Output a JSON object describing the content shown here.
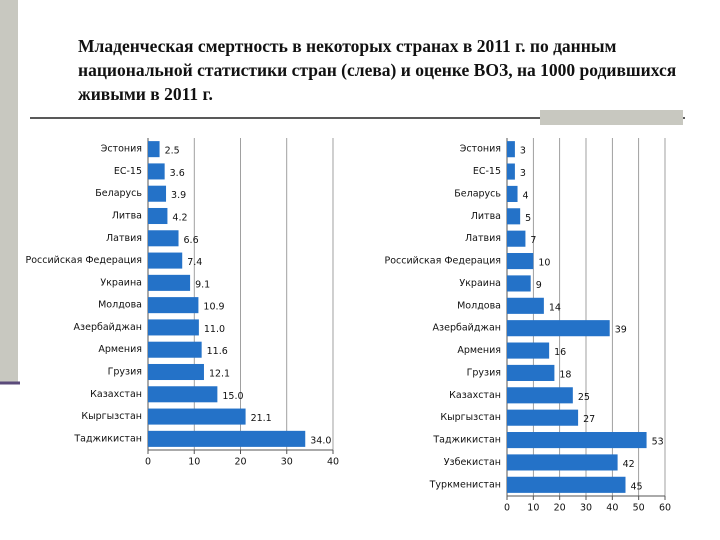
{
  "title": "Младенческая смертность в некоторых странах в 2011 г. по данным национальной статистики стран (слева) и оценке ВОЗ, на 1000 родившихся живыми в 2011 г.",
  "chart_data": [
    {
      "type": "bar",
      "orientation": "horizontal",
      "color": "#2472c8",
      "grid": true,
      "categories": [
        "Эстония",
        "ЕС-15",
        "Беларусь",
        "Литва",
        "Латвия",
        "Российская Федерация",
        "Украина",
        "Молдова",
        "Азербайджан",
        "Армения",
        "Грузия",
        "Казахстан",
        "Кыргызстан",
        "Таджикистан"
      ],
      "values": [
        2.5,
        3.6,
        3.9,
        4.2,
        6.6,
        7.4,
        9.1,
        10.9,
        11.0,
        11.6,
        12.1,
        15.0,
        21.1,
        34.0
      ],
      "value_labels": [
        "2.5",
        "3.6",
        "3.9",
        "4.2",
        "6.6",
        "7.4",
        "9.1",
        "10.9",
        "11.0",
        "11.6",
        "12.1",
        "15.0",
        "21.1",
        "34.0"
      ],
      "xlim": [
        0,
        40
      ],
      "xticks": [
        0,
        10,
        20,
        30,
        40
      ]
    },
    {
      "type": "bar",
      "orientation": "horizontal",
      "color": "#2472c8",
      "grid": true,
      "categories": [
        "Эстония",
        "ЕС-15",
        "Беларусь",
        "Литва",
        "Латвия",
        "Российская Федерация",
        "Украина",
        "Молдова",
        "Азербайджан",
        "Армения",
        "Грузия",
        "Казахстан",
        "Кыргызстан",
        "Таджикистан",
        "Узбекистан",
        "Туркменистан"
      ],
      "values": [
        3,
        3,
        4,
        5,
        7,
        10,
        9,
        14,
        39,
        16,
        18,
        25,
        27,
        53,
        42,
        45
      ],
      "xlim": [
        0,
        60
      ],
      "xticks": [
        0,
        10,
        20,
        30,
        40,
        50,
        60
      ]
    }
  ]
}
